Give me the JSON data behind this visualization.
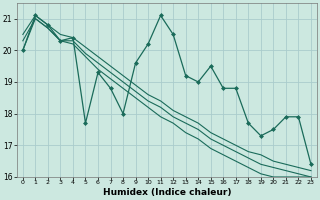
{
  "xlabel": "Humidex (Indice chaleur)",
  "background_color": "#cce8e0",
  "grid_color": "#aacccc",
  "line_color": "#1a6b5a",
  "xlim": [
    -0.5,
    23.5
  ],
  "ylim": [
    16.0,
    21.5
  ],
  "yticks": [
    16,
    17,
    18,
    19,
    20,
    21
  ],
  "xticks": [
    0,
    1,
    2,
    3,
    4,
    5,
    6,
    7,
    8,
    9,
    10,
    11,
    12,
    13,
    14,
    15,
    16,
    17,
    18,
    19,
    20,
    21,
    22,
    23
  ],
  "series_main": [
    20.0,
    21.1,
    20.8,
    20.3,
    20.4,
    17.7,
    19.3,
    18.8,
    18.0,
    19.6,
    20.2,
    21.1,
    20.5,
    19.2,
    19.0,
    19.5,
    18.8,
    18.8,
    17.7,
    17.3,
    17.5,
    17.9,
    17.9,
    16.4
  ],
  "series_line1": [
    20.0,
    21.0,
    20.7,
    20.3,
    20.2,
    19.8,
    19.4,
    19.1,
    18.8,
    18.5,
    18.2,
    17.9,
    17.7,
    17.4,
    17.2,
    16.9,
    16.7,
    16.5,
    16.3,
    16.1,
    16.0,
    16.0,
    16.0,
    16.0
  ],
  "series_line2": [
    20.3,
    21.0,
    20.7,
    20.3,
    20.3,
    19.9,
    19.6,
    19.3,
    19.0,
    18.7,
    18.4,
    18.2,
    17.9,
    17.7,
    17.5,
    17.2,
    17.0,
    16.8,
    16.6,
    16.4,
    16.3,
    16.2,
    16.1,
    16.0
  ],
  "series_line3": [
    20.5,
    21.1,
    20.8,
    20.5,
    20.4,
    20.1,
    19.8,
    19.5,
    19.2,
    18.9,
    18.6,
    18.4,
    18.1,
    17.9,
    17.7,
    17.4,
    17.2,
    17.0,
    16.8,
    16.7,
    16.5,
    16.4,
    16.3,
    16.2
  ]
}
